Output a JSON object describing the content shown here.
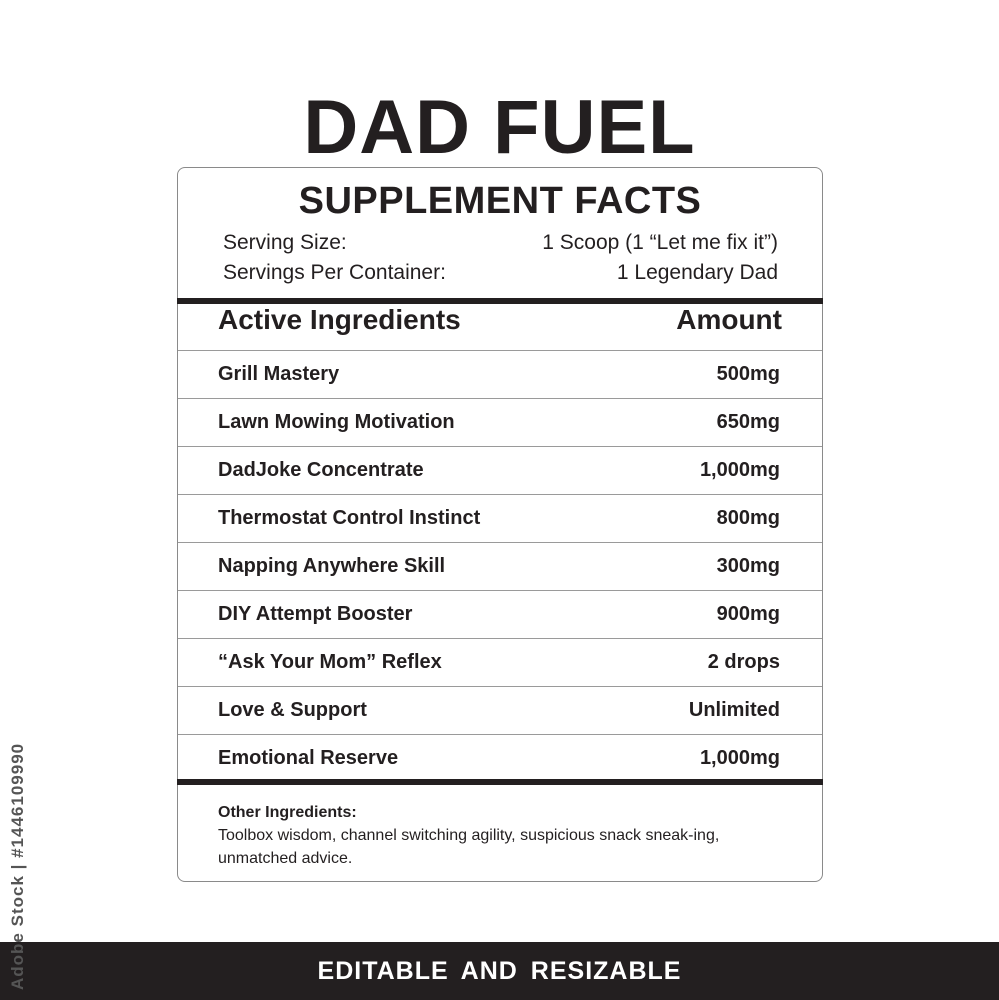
{
  "title": "DAD FUEL",
  "panel": {
    "heading": "SUPPLEMENT FACTS",
    "serving_size_label": "Serving Size:",
    "serving_size_value": "1 Scoop (1 “Let me fix it”)",
    "servings_label": "Servings Per Container:",
    "servings_value": "1 Legendary Dad",
    "col_ingredients": "Active Ingredients",
    "col_amount": "Amount",
    "rows": [
      {
        "name": "Grill Mastery",
        "amount": "500mg"
      },
      {
        "name": "Lawn Mowing Motivation",
        "amount": "650mg"
      },
      {
        "name": "DadJoke Concentrate",
        "amount": "1,000mg"
      },
      {
        "name": "Thermostat Control Instinct",
        "amount": "800mg"
      },
      {
        "name": "Napping Anywhere Skill",
        "amount": "300mg"
      },
      {
        "name": "DIY Attempt Booster",
        "amount": "900mg"
      },
      {
        "name": "“Ask Your Mom” Reflex",
        "amount": "2 drops"
      },
      {
        "name": "Love & Support",
        "amount": "Unlimited"
      },
      {
        "name": "Emotional Reserve",
        "amount": "1,000mg"
      }
    ],
    "other_label": "Other Ingredients:",
    "other_text": "Toolbox wisdom, channel switching agility, suspicious snack sneak-ing, unmatched advice."
  },
  "banner": "EDITABLE AND RESIZABLE",
  "watermark": "Adobe Stock | #1446109990"
}
